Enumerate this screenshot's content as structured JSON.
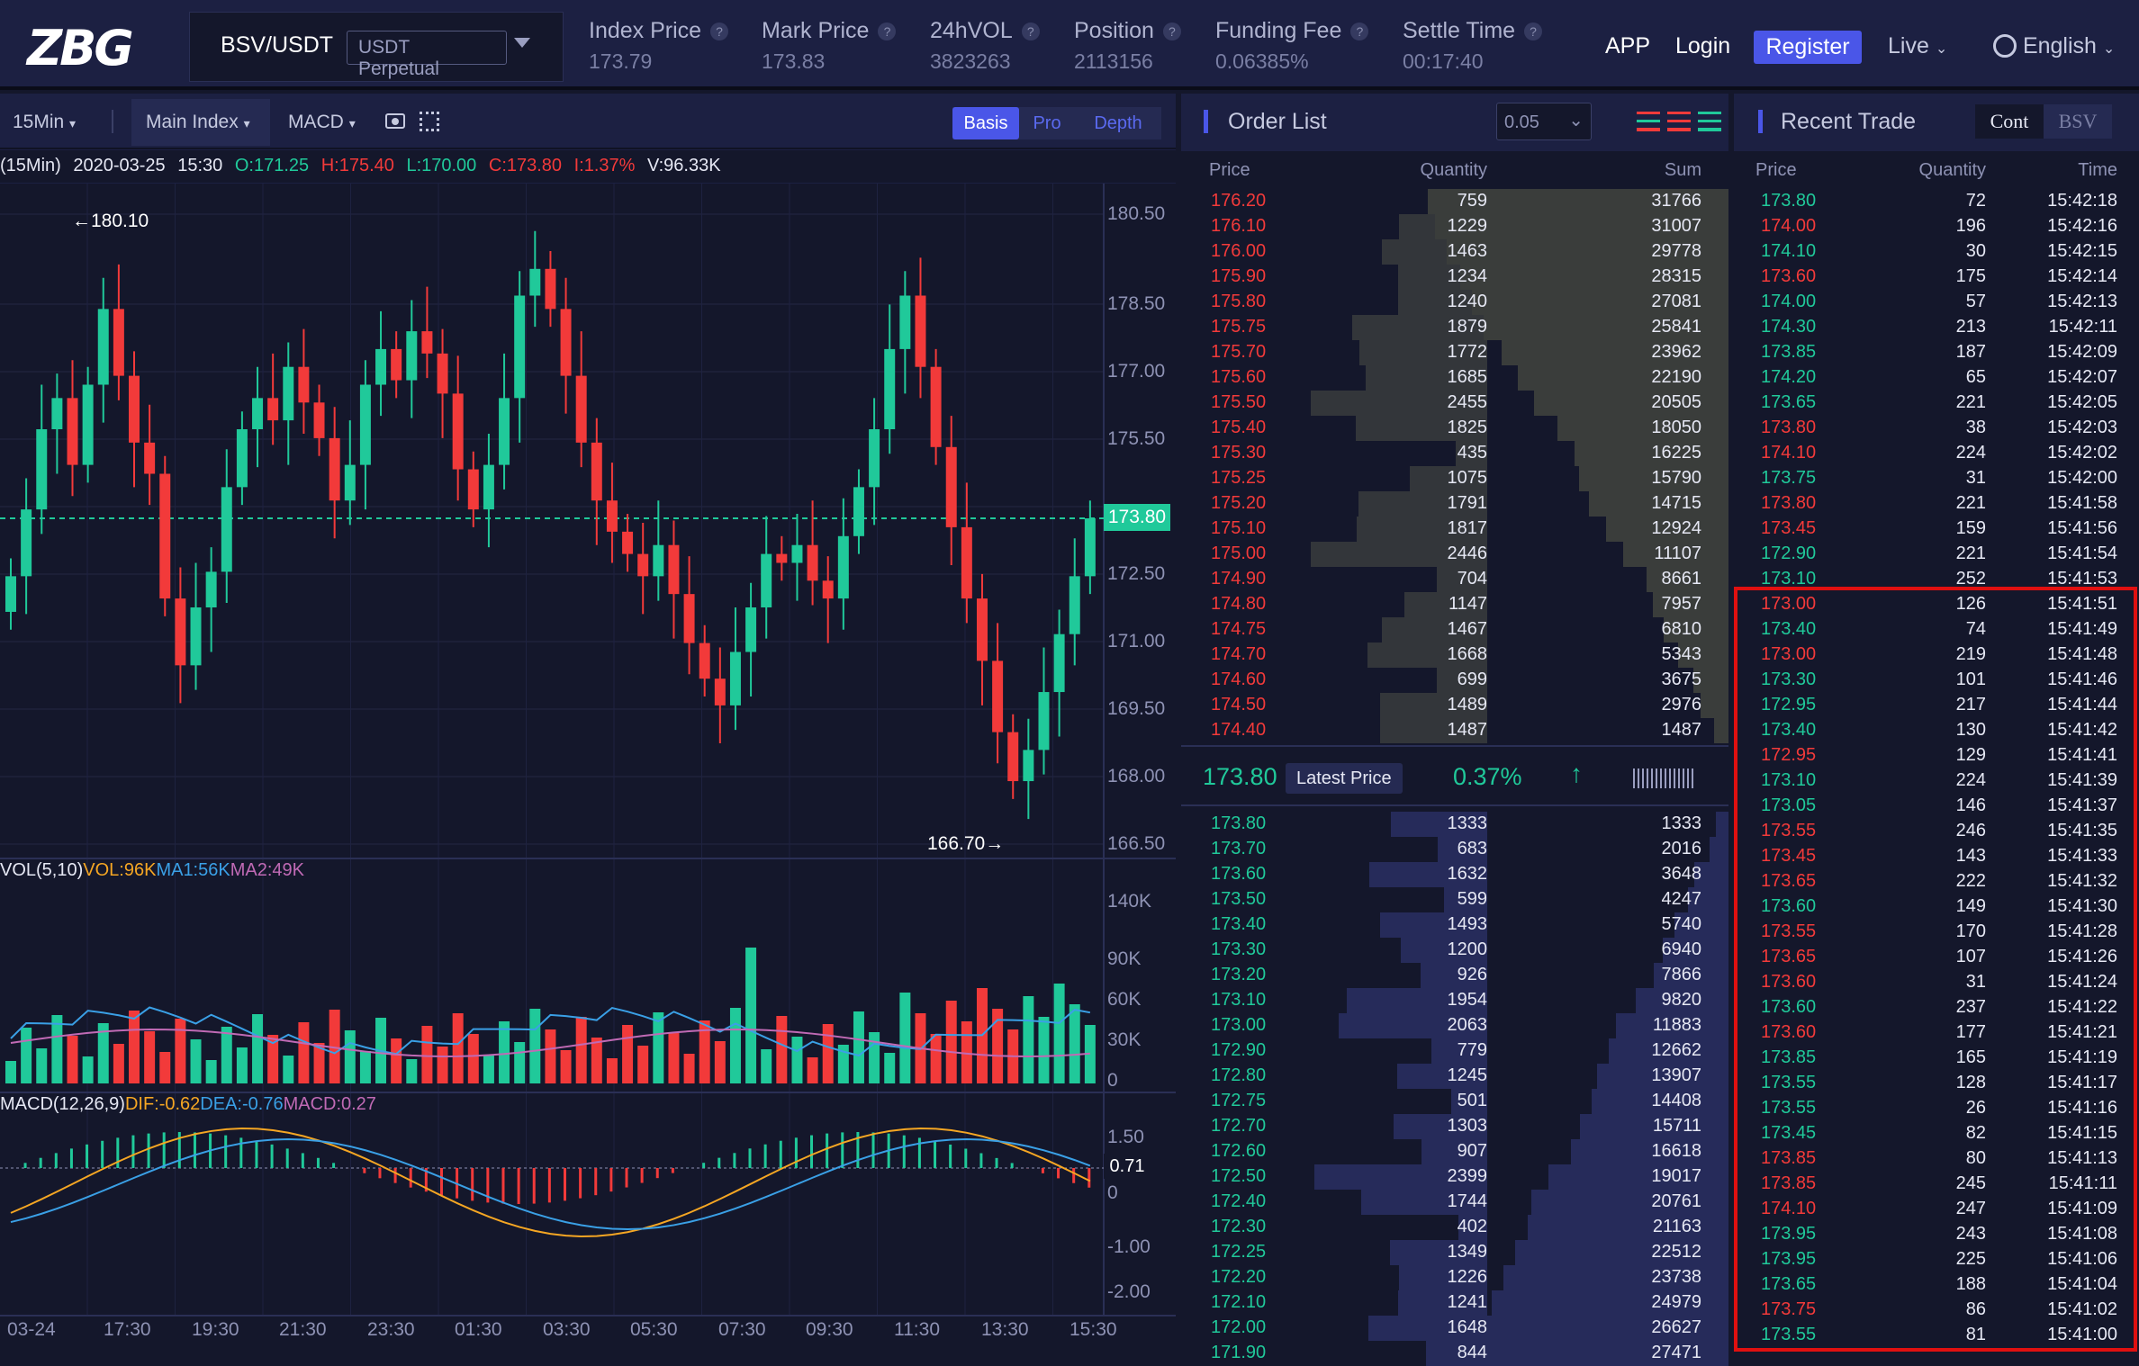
{
  "header": {
    "logo": "ZBG",
    "pair": "BSV/USDT",
    "contract": "USDT Perpetual",
    "stats": [
      {
        "label": "Index Price",
        "value": "173.79"
      },
      {
        "label": "Mark Price",
        "value": "173.83"
      },
      {
        "label": "24hVOL",
        "value": "3823263"
      },
      {
        "label": "Position",
        "value": "2113156"
      },
      {
        "label": "Funding Fee",
        "value": "0.06385%"
      },
      {
        "label": "Settle Time",
        "value": "00:17:40"
      }
    ],
    "help": "?",
    "app": "APP",
    "login": "Login",
    "register": "Register",
    "live": "Live",
    "language": "English"
  },
  "chart_toolbar": {
    "interval": "15Min",
    "main_index": "Main Index",
    "indicator": "MACD",
    "views": [
      "Basis",
      "Pro",
      "Depth"
    ],
    "active_view": "Basis"
  },
  "ohlc": {
    "interval": "(15Min)",
    "date": "2020-03-25",
    "time": "15:30",
    "open": "O:171.25",
    "high": "H:175.40",
    "low": "L:170.00",
    "close": "C:173.80",
    "change": "I:1.37%",
    "volume": "V:96.33K"
  },
  "price_axis": [
    "180.50",
    "178.50",
    "177.00",
    "175.50",
    "172.50",
    "171.00",
    "169.50",
    "168.00",
    "166.50"
  ],
  "current_price_tag": "173.80",
  "high_marker": "←180.10",
  "low_marker": "166.70→",
  "vol_legend": {
    "label": "VOL(5,10)",
    "vol": "VOL:96K",
    "ma1": "MA1:56K",
    "ma2": "MA2:49K"
  },
  "vol_axis": [
    "140K",
    "90K",
    "60K",
    "30K",
    "0"
  ],
  "macd_legend": {
    "label": "MACD(12,26,9)",
    "dif": "DIF:-0.62",
    "dea": "DEA:-0.76",
    "macd": "MACD:0.27"
  },
  "macd_axis": [
    "1.50",
    "0",
    "-1.00",
    "-2.00"
  ],
  "macd_tag": "0.71",
  "time_axis": [
    "03-24",
    "17:30",
    "19:30",
    "21:30",
    "23:30",
    "01:30",
    "03:30",
    "05:30",
    "07:30",
    "09:30",
    "11:30",
    "13:30",
    "15:30"
  ],
  "colors": {
    "up": "#20c99a",
    "down": "#f23a3a",
    "accent": "#4a56e8",
    "bg": "#14172b",
    "panel": "#1c2042",
    "vol_line": "#f5a623",
    "ma1": "#3aa0e6",
    "ma2": "#c06ab5"
  },
  "order_list": {
    "title": "Order List",
    "precision": "0.05",
    "headers": [
      "Price",
      "Quantity",
      "Sum"
    ],
    "asks": [
      [
        "176.20",
        "759",
        "31766"
      ],
      [
        "176.10",
        "1229",
        "31007"
      ],
      [
        "176.00",
        "1463",
        "29778"
      ],
      [
        "175.90",
        "1234",
        "28315"
      ],
      [
        "175.80",
        "1240",
        "27081"
      ],
      [
        "175.75",
        "1879",
        "25841"
      ],
      [
        "175.70",
        "1772",
        "23962"
      ],
      [
        "175.60",
        "1685",
        "22190"
      ],
      [
        "175.50",
        "2455",
        "20505"
      ],
      [
        "175.40",
        "1825",
        "18050"
      ],
      [
        "175.30",
        "435",
        "16225"
      ],
      [
        "175.25",
        "1075",
        "15790"
      ],
      [
        "175.20",
        "1791",
        "14715"
      ],
      [
        "175.10",
        "1817",
        "12924"
      ],
      [
        "175.00",
        "2446",
        "11107"
      ],
      [
        "174.90",
        "704",
        "8661"
      ],
      [
        "174.80",
        "1147",
        "7957"
      ],
      [
        "174.75",
        "1467",
        "6810"
      ],
      [
        "174.70",
        "1668",
        "5343"
      ],
      [
        "174.60",
        "699",
        "3675"
      ],
      [
        "174.50",
        "1489",
        "2976"
      ],
      [
        "174.40",
        "1487",
        "1487"
      ]
    ],
    "latest": {
      "price": "173.80",
      "label": "Latest Price",
      "change": "0.37%"
    },
    "bids": [
      [
        "173.80",
        "1333",
        "1333"
      ],
      [
        "173.70",
        "683",
        "2016"
      ],
      [
        "173.60",
        "1632",
        "3648"
      ],
      [
        "173.50",
        "599",
        "4247"
      ],
      [
        "173.40",
        "1493",
        "5740"
      ],
      [
        "173.30",
        "1200",
        "6940"
      ],
      [
        "173.20",
        "926",
        "7866"
      ],
      [
        "173.10",
        "1954",
        "9820"
      ],
      [
        "173.00",
        "2063",
        "11883"
      ],
      [
        "172.90",
        "779",
        "12662"
      ],
      [
        "172.80",
        "1245",
        "13907"
      ],
      [
        "172.75",
        "501",
        "14408"
      ],
      [
        "172.70",
        "1303",
        "15711"
      ],
      [
        "172.60",
        "907",
        "16618"
      ],
      [
        "172.50",
        "2399",
        "19017"
      ],
      [
        "172.40",
        "1744",
        "20761"
      ],
      [
        "172.30",
        "402",
        "21163"
      ],
      [
        "172.25",
        "1349",
        "22512"
      ],
      [
        "172.20",
        "1226",
        "23738"
      ],
      [
        "172.10",
        "1241",
        "24979"
      ],
      [
        "172.00",
        "1648",
        "26627"
      ],
      [
        "171.90",
        "844",
        "27471"
      ]
    ]
  },
  "recent_trade": {
    "title": "Recent Trade",
    "tabs": [
      "Cont",
      "BSV"
    ],
    "headers": [
      "Price",
      "Quantity",
      "Time"
    ],
    "trades": [
      [
        "173.80",
        "72",
        "15:42:18",
        "g"
      ],
      [
        "174.00",
        "196",
        "15:42:16",
        "r"
      ],
      [
        "174.10",
        "30",
        "15:42:15",
        "g"
      ],
      [
        "173.60",
        "175",
        "15:42:14",
        "r"
      ],
      [
        "174.00",
        "57",
        "15:42:13",
        "g"
      ],
      [
        "174.30",
        "213",
        "15:42:11",
        "g"
      ],
      [
        "173.85",
        "187",
        "15:42:09",
        "g"
      ],
      [
        "174.20",
        "65",
        "15:42:07",
        "g"
      ],
      [
        "173.65",
        "221",
        "15:42:05",
        "g"
      ],
      [
        "173.80",
        "38",
        "15:42:03",
        "r"
      ],
      [
        "174.10",
        "224",
        "15:42:02",
        "r"
      ],
      [
        "173.75",
        "31",
        "15:42:00",
        "g"
      ],
      [
        "173.80",
        "221",
        "15:41:58",
        "r"
      ],
      [
        "173.45",
        "159",
        "15:41:56",
        "r"
      ],
      [
        "172.90",
        "221",
        "15:41:54",
        "g"
      ],
      [
        "173.10",
        "252",
        "15:41:53",
        "g"
      ],
      [
        "173.00",
        "126",
        "15:41:51",
        "r"
      ],
      [
        "173.40",
        "74",
        "15:41:49",
        "g"
      ],
      [
        "173.00",
        "219",
        "15:41:48",
        "r"
      ],
      [
        "173.30",
        "101",
        "15:41:46",
        "g"
      ],
      [
        "172.95",
        "217",
        "15:41:44",
        "g"
      ],
      [
        "173.40",
        "130",
        "15:41:42",
        "g"
      ],
      [
        "172.95",
        "129",
        "15:41:41",
        "r"
      ],
      [
        "173.10",
        "224",
        "15:41:39",
        "g"
      ],
      [
        "173.05",
        "146",
        "15:41:37",
        "g"
      ],
      [
        "173.55",
        "246",
        "15:41:35",
        "r"
      ],
      [
        "173.45",
        "143",
        "15:41:33",
        "r"
      ],
      [
        "173.65",
        "222",
        "15:41:32",
        "r"
      ],
      [
        "173.60",
        "149",
        "15:41:30",
        "g"
      ],
      [
        "173.55",
        "170",
        "15:41:28",
        "r"
      ],
      [
        "173.65",
        "107",
        "15:41:26",
        "r"
      ],
      [
        "173.60",
        "31",
        "15:41:24",
        "r"
      ],
      [
        "173.60",
        "237",
        "15:41:22",
        "g"
      ],
      [
        "173.60",
        "177",
        "15:41:21",
        "r"
      ],
      [
        "173.85",
        "165",
        "15:41:19",
        "g"
      ],
      [
        "173.55",
        "128",
        "15:41:17",
        "g"
      ],
      [
        "173.55",
        "26",
        "15:41:16",
        "g"
      ],
      [
        "173.45",
        "82",
        "15:41:15",
        "g"
      ],
      [
        "173.85",
        "80",
        "15:41:13",
        "r"
      ],
      [
        "173.85",
        "245",
        "15:41:11",
        "r"
      ],
      [
        "174.10",
        "247",
        "15:41:09",
        "r"
      ],
      [
        "173.95",
        "243",
        "15:41:08",
        "g"
      ],
      [
        "173.95",
        "225",
        "15:41:06",
        "g"
      ],
      [
        "173.65",
        "188",
        "15:41:04",
        "g"
      ],
      [
        "173.75",
        "86",
        "15:41:02",
        "r"
      ],
      [
        "173.55",
        "81",
        "15:41:00",
        "g"
      ]
    ]
  }
}
